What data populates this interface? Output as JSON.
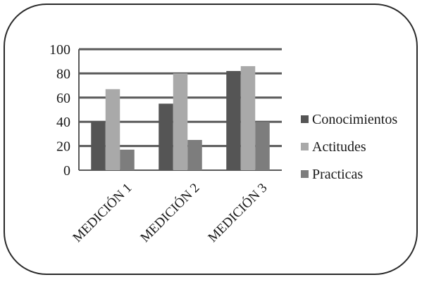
{
  "chart_data": {
    "type": "bar",
    "categories": [
      "MEDICIÓN 1",
      "MEDICIÓN 2",
      "MEDICIÓN 3"
    ],
    "series": [
      {
        "name": "Conocimientos",
        "values": [
          40,
          55,
          82
        ],
        "color": "#555555"
      },
      {
        "name": "Actitudes",
        "values": [
          67,
          80,
          86
        ],
        "color": "#a9a9a9"
      },
      {
        "name": "Practicas",
        "values": [
          17,
          25,
          40
        ],
        "color": "#7d7d7d"
      }
    ],
    "title": "",
    "xlabel": "",
    "ylabel": "",
    "ylim": [
      0,
      100
    ],
    "yticks": [
      "0",
      "20",
      "40",
      "60",
      "80",
      "100"
    ],
    "grid": true,
    "legend_position": "right"
  }
}
